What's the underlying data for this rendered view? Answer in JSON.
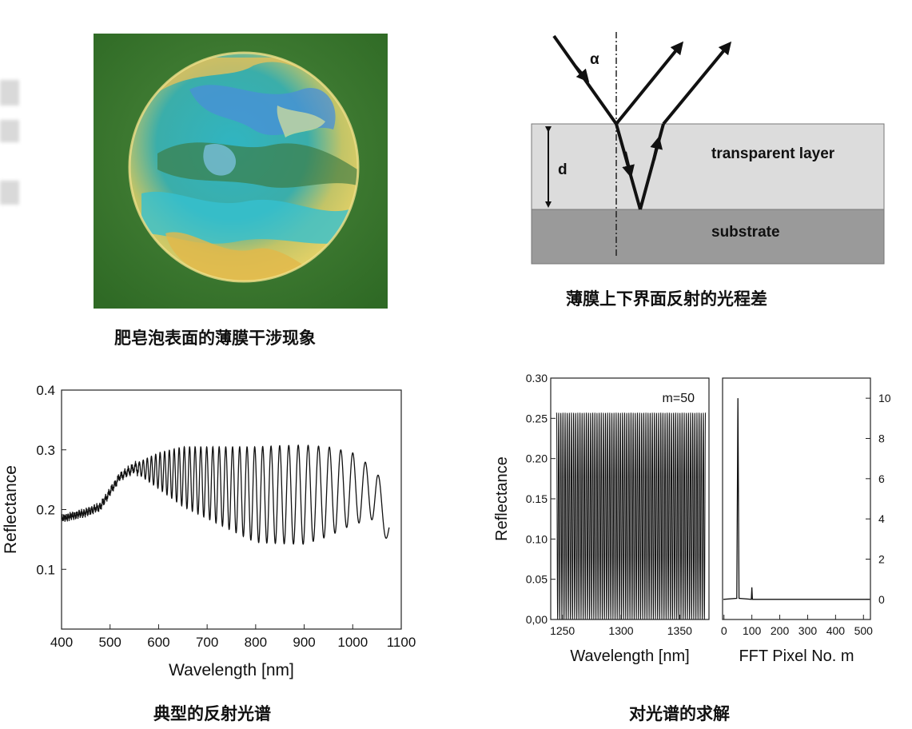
{
  "panels": {
    "bubble": {
      "caption": "肥皂泡表面的薄膜干涉现象"
    },
    "diagram": {
      "caption": "薄膜上下界面反射的光程差",
      "angle_label": "α",
      "thickness_label": "d",
      "layer_label": "transparent layer",
      "substrate_label": "substrate"
    },
    "spectrum": {
      "caption": "典型的反射光谱"
    },
    "solution": {
      "caption": "对光谱的求解"
    }
  },
  "chart_data": [
    {
      "type": "line",
      "name": "typical-spectrum",
      "xlabel": "Wavelength [nm]",
      "ylabel": "Reflectance",
      "xlim": [
        400,
        1100
      ],
      "ylim": [
        0,
        0.4
      ],
      "xticks": [
        "400",
        "500",
        "600",
        "700",
        "800",
        "900",
        "1000",
        "1100"
      ],
      "yticks": [
        "0.1",
        "0.2",
        "0.3",
        "0.4"
      ],
      "grid": false,
      "series": [
        {
          "x": [
            400,
            450,
            480,
            500,
            520,
            550,
            600,
            650,
            700,
            750,
            800,
            850,
            900,
            950,
            1000,
            1050,
            1075
          ],
          "y_center": [
            0.185,
            0.195,
            0.205,
            0.23,
            0.255,
            0.27,
            0.265,
            0.255,
            0.245,
            0.235,
            0.225,
            0.225,
            0.225,
            0.23,
            0.235,
            0.225,
            0.17
          ],
          "y_amplitude": [
            0.003,
            0.004,
            0.004,
            0.004,
            0.004,
            0.006,
            0.03,
            0.05,
            0.06,
            0.07,
            0.08,
            0.082,
            0.083,
            0.075,
            0.06,
            0.04,
            0.03
          ],
          "oscillations": 62
        }
      ]
    },
    {
      "type": "line",
      "name": "fringe-spectrum",
      "xlabel": "Wavelength [nm]",
      "ylabel": "Reflectance",
      "xlim": [
        1240,
        1375
      ],
      "ylim": [
        0,
        0.3
      ],
      "xticks": [
        "1250",
        "1300",
        "1350"
      ],
      "yticks": [
        "0,00",
        "0.05",
        "0.10",
        "0.15",
        "0.20",
        "0.25",
        "0.30"
      ],
      "annotation": "m=50",
      "series": [
        {
          "x_start": 1245,
          "x_end": 1372,
          "y_min": 0.0,
          "y_max": 0.257,
          "oscillations": 70
        }
      ]
    },
    {
      "type": "line",
      "name": "fft-spectrum",
      "xlabel": "FFT Pixel No. m",
      "xlim": [
        -5,
        525
      ],
      "ylim": [
        -1,
        11
      ],
      "xticks": [
        "0",
        "100",
        "200",
        "300",
        "400",
        "500"
      ],
      "yticks": [
        "0",
        "2",
        "4",
        "6",
        "8",
        "10"
      ],
      "series": [
        {
          "baseline": 0.0,
          "peaks": [
            {
              "x": 50,
              "y": 10.0
            },
            {
              "x": 100,
              "y": 0.6
            }
          ]
        }
      ]
    }
  ]
}
